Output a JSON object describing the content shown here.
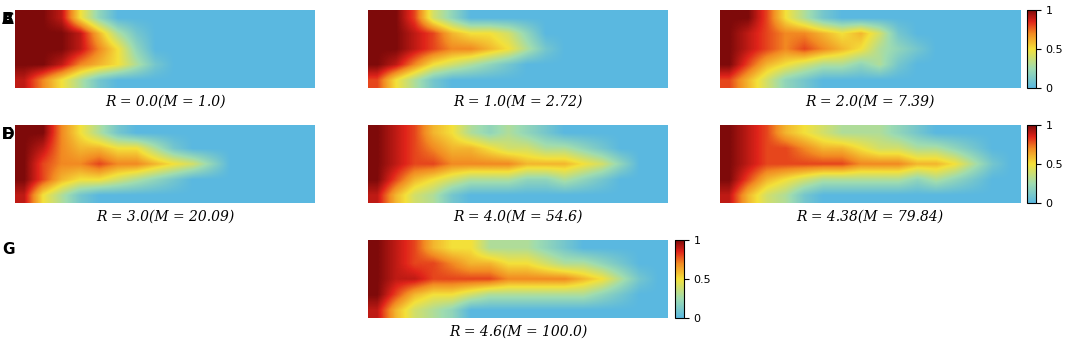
{
  "chart_data": [
    {
      "type": "heatmap",
      "panel_label": "A",
      "title": "R = 0.0(M = 1.0)",
      "tick_labels": false,
      "cells": [
        [
          1,
          1,
          0.9,
          0.5,
          0.2,
          0,
          0,
          0,
          0,
          0,
          0,
          0,
          0,
          0,
          0,
          0
        ],
        [
          1,
          1,
          1,
          0.9,
          0.6,
          0.3,
          0.1,
          0,
          0,
          0,
          0,
          0,
          0,
          0,
          0,
          0
        ],
        [
          1,
          1,
          1,
          0.9,
          0.7,
          0.5,
          0.2,
          0,
          0,
          0,
          0,
          0,
          0,
          0,
          0,
          0
        ],
        [
          1,
          1,
          0.9,
          0.7,
          0.6,
          0.5,
          0.3,
          0.1,
          0,
          0,
          0,
          0,
          0,
          0,
          0,
          0
        ],
        [
          0.9,
          0.7,
          0.5,
          0.3,
          0.1,
          0,
          0,
          0,
          0,
          0,
          0,
          0,
          0,
          0,
          0,
          0
        ]
      ]
    },
    {
      "type": "heatmap",
      "panel_label": "B",
      "title": "R = 1.0(M = 2.72)",
      "tick_labels": false,
      "cells": [
        [
          1,
          1,
          0.8,
          0.4,
          0.2,
          0,
          0,
          0,
          0,
          0,
          0,
          0,
          0,
          0,
          0,
          0
        ],
        [
          1,
          1,
          0.9,
          0.8,
          0.6,
          0.5,
          0.5,
          0.4,
          0.2,
          0,
          0,
          0,
          0,
          0,
          0,
          0
        ],
        [
          1,
          1,
          0.9,
          0.8,
          0.7,
          0.7,
          0.6,
          0.5,
          0.3,
          0.1,
          0,
          0,
          0,
          0,
          0,
          0
        ],
        [
          1,
          0.9,
          0.7,
          0.5,
          0.4,
          0.3,
          0.2,
          0.1,
          0,
          0,
          0,
          0,
          0,
          0,
          0,
          0
        ],
        [
          0.8,
          0.5,
          0.3,
          0.1,
          0,
          0,
          0,
          0,
          0,
          0,
          0,
          0,
          0,
          0,
          0,
          0
        ]
      ]
    },
    {
      "type": "heatmap",
      "panel_label": "C",
      "title": "R = 2.0(M = 7.39)",
      "tick_labels": false,
      "cells": [
        [
          1,
          1,
          0.8,
          0.5,
          0.3,
          0.1,
          0,
          0,
          0,
          0,
          0,
          0,
          0,
          0,
          0,
          0
        ],
        [
          1,
          0.9,
          0.8,
          0.7,
          0.7,
          0.6,
          0.5,
          0.6,
          0.4,
          0.1,
          0,
          0,
          0,
          0,
          0,
          0
        ],
        [
          1,
          0.9,
          0.8,
          0.7,
          0.8,
          0.7,
          0.6,
          0.5,
          0.3,
          0.2,
          0.1,
          0,
          0,
          0,
          0,
          0
        ],
        [
          1,
          0.8,
          0.6,
          0.5,
          0.4,
          0.3,
          0.3,
          0.2,
          0.3,
          0.1,
          0,
          0,
          0,
          0,
          0,
          0
        ],
        [
          0.8,
          0.6,
          0.4,
          0.2,
          0.1,
          0,
          0,
          0,
          0,
          0,
          0,
          0,
          0,
          0,
          0,
          0
        ]
      ],
      "colorbar": {
        "range": [
          0,
          1
        ],
        "ticks": [
          0,
          0.5,
          1
        ]
      }
    },
    {
      "type": "heatmap",
      "panel_label": "D",
      "title": "R = 3.0(M = 20.09)",
      "tick_labels": false,
      "cells": [
        [
          1,
          1,
          0.7,
          0.5,
          0.3,
          0.1,
          0,
          0,
          0,
          0,
          0,
          0,
          0,
          0,
          0,
          0
        ],
        [
          1,
          0.9,
          0.7,
          0.6,
          0.6,
          0.5,
          0.5,
          0.3,
          0.1,
          0,
          0,
          0,
          0,
          0,
          0,
          0
        ],
        [
          1,
          0.8,
          0.7,
          0.7,
          0.8,
          0.7,
          0.7,
          0.6,
          0.5,
          0.4,
          0.2,
          0,
          0,
          0,
          0,
          0
        ],
        [
          1,
          0.8,
          0.6,
          0.5,
          0.5,
          0.4,
          0.3,
          0.2,
          0.1,
          0,
          0,
          0,
          0,
          0,
          0,
          0
        ],
        [
          0.9,
          0.5,
          0.3,
          0.1,
          0,
          0,
          0,
          0,
          0,
          0,
          0,
          0,
          0,
          0,
          0,
          0
        ]
      ]
    },
    {
      "type": "heatmap",
      "panel_label": "E",
      "title": "R = 4.0(M = 54.6)",
      "tick_labels": false,
      "cells": [
        [
          1,
          0.9,
          0.8,
          0.6,
          0.5,
          0.3,
          0.2,
          0.3,
          0.2,
          0.1,
          0,
          0,
          0,
          0,
          0,
          0
        ],
        [
          1,
          0.9,
          0.8,
          0.7,
          0.6,
          0.6,
          0.5,
          0.4,
          0.4,
          0.3,
          0.3,
          0.2,
          0.1,
          0,
          0,
          0
        ],
        [
          1,
          0.9,
          0.8,
          0.8,
          0.7,
          0.7,
          0.7,
          0.7,
          0.6,
          0.6,
          0.6,
          0.5,
          0.4,
          0.2,
          0,
          0
        ],
        [
          1,
          0.8,
          0.6,
          0.5,
          0.4,
          0.3,
          0.3,
          0.3,
          0.2,
          0.2,
          0.3,
          0.2,
          0.1,
          0,
          0,
          0
        ],
        [
          0.9,
          0.6,
          0.4,
          0.3,
          0.1,
          0,
          0,
          0,
          0,
          0,
          0,
          0,
          0,
          0,
          0,
          0
        ]
      ]
    },
    {
      "type": "heatmap",
      "panel_label": "F",
      "title": "R = 4.38(M = 79.84)",
      "tick_labels": false,
      "cells": [
        [
          1,
          0.9,
          0.8,
          0.6,
          0.5,
          0.4,
          0.3,
          0.3,
          0.3,
          0.2,
          0.1,
          0,
          0,
          0,
          0,
          0
        ],
        [
          1,
          0.9,
          0.8,
          0.8,
          0.7,
          0.6,
          0.6,
          0.5,
          0.4,
          0.4,
          0.3,
          0.3,
          0.2,
          0.1,
          0,
          0
        ],
        [
          1,
          0.9,
          0.8,
          0.8,
          0.8,
          0.8,
          0.8,
          0.7,
          0.7,
          0.7,
          0.6,
          0.6,
          0.5,
          0.3,
          0.1,
          0
        ],
        [
          1,
          0.8,
          0.6,
          0.5,
          0.4,
          0.3,
          0.3,
          0.3,
          0.3,
          0.3,
          0.2,
          0.3,
          0.2,
          0.1,
          0,
          0
        ],
        [
          0.9,
          0.6,
          0.4,
          0.3,
          0.1,
          0,
          0,
          0,
          0,
          0,
          0,
          0,
          0,
          0,
          0,
          0
        ]
      ],
      "colorbar": {
        "range": [
          0,
          1
        ],
        "ticks": [
          0,
          0.5,
          1
        ]
      }
    },
    {
      "type": "heatmap",
      "panel_label": "G",
      "title": "R = 4.6(M = 100.0)",
      "tick_labels": false,
      "cells": [
        [
          1,
          0.9,
          0.8,
          0.6,
          0.5,
          0.5,
          0.3,
          0.3,
          0.3,
          0.2,
          0.1,
          0,
          0,
          0,
          0,
          0
        ],
        [
          1,
          0.9,
          0.8,
          0.8,
          0.7,
          0.6,
          0.6,
          0.5,
          0.5,
          0.4,
          0.3,
          0.3,
          0.2,
          0.1,
          0,
          0
        ],
        [
          1,
          0.9,
          0.9,
          0.8,
          0.8,
          0.8,
          0.8,
          0.7,
          0.7,
          0.7,
          0.7,
          0.6,
          0.5,
          0.3,
          0.1,
          0
        ],
        [
          1,
          0.8,
          0.6,
          0.5,
          0.5,
          0.4,
          0.3,
          0.3,
          0.3,
          0.3,
          0.3,
          0.3,
          0.2,
          0.1,
          0,
          0
        ],
        [
          0.9,
          0.6,
          0.4,
          0.3,
          0.2,
          0,
          0,
          0,
          0,
          0,
          0,
          0,
          0,
          0,
          0,
          0
        ]
      ],
      "colorbar": {
        "range": [
          0,
          1
        ],
        "ticks": [
          0,
          0.5,
          1
        ]
      }
    }
  ]
}
